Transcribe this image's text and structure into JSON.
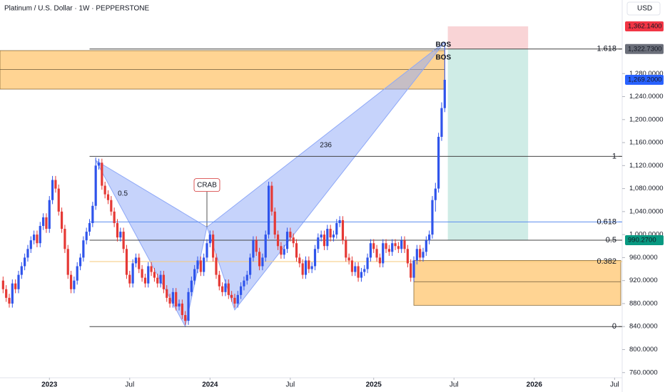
{
  "chart_data": {
    "type": "candlestick",
    "title": "Platinum / U.S. Dollar · 1W · PEPPERSTONE",
    "currency": "USD",
    "up_color": "#2f54eb",
    "down_color": "#e53935",
    "xlim": [
      -1,
      200
    ],
    "ylim": [
      751,
      1408
    ],
    "xticks": [
      {
        "value": 15,
        "label": "2023"
      },
      {
        "value": 41,
        "label": "Jul"
      },
      {
        "value": 67,
        "label": "2024"
      },
      {
        "value": 93,
        "label": "Jul"
      },
      {
        "value": 120,
        "label": "2025"
      },
      {
        "value": 146,
        "label": "Jul"
      },
      {
        "value": 172,
        "label": "2026"
      },
      {
        "value": 198,
        "label": "Jul"
      }
    ],
    "yticks": [
      {
        "value": 760,
        "label": "760.0000"
      },
      {
        "value": 800,
        "label": "800.0000"
      },
      {
        "value": 840,
        "label": "840.0000"
      },
      {
        "value": 880,
        "label": "880.0000"
      },
      {
        "value": 920,
        "label": "920.0000"
      },
      {
        "value": 960,
        "label": "960.0000"
      },
      {
        "value": 1000,
        "label": "1,000.0000"
      },
      {
        "value": 1040,
        "label": "1,040.0000"
      },
      {
        "value": 1080,
        "label": "1,080.0000"
      },
      {
        "value": 1120,
        "label": "1,120.0000"
      },
      {
        "value": 1160,
        "label": "1,160.0000"
      },
      {
        "value": 1200,
        "label": "1,200.0000"
      },
      {
        "value": 1240,
        "label": "1,240.0000"
      },
      {
        "value": 1280,
        "label": "1,280.0000"
      }
    ],
    "ohlc": [
      [
        920,
        927,
        898,
        905
      ],
      [
        905,
        912,
        883,
        890
      ],
      [
        890,
        897,
        873,
        880
      ],
      [
        880,
        922,
        873,
        915
      ],
      [
        915,
        922,
        898,
        905
      ],
      [
        905,
        937,
        898,
        930
      ],
      [
        930,
        952,
        923,
        945
      ],
      [
        945,
        967,
        938,
        960
      ],
      [
        960,
        982,
        953,
        975
      ],
      [
        975,
        997,
        968,
        990
      ],
      [
        990,
        1007,
        983,
        1000
      ],
      [
        1000,
        1007,
        978,
        985
      ],
      [
        985,
        1022,
        978,
        1015
      ],
      [
        1015,
        1037,
        1008,
        1030
      ],
      [
        1030,
        1037,
        1003,
        1010
      ],
      [
        1010,
        1067,
        1003,
        1060
      ],
      [
        1060,
        1102,
        1053,
        1095
      ],
      [
        1095,
        1102,
        1073,
        1080
      ],
      [
        1080,
        1087,
        1033,
        1040
      ],
      [
        1040,
        1047,
        1003,
        1010
      ],
      [
        1010,
        1017,
        968,
        975
      ],
      [
        975,
        982,
        923,
        930
      ],
      [
        930,
        937,
        898,
        905
      ],
      [
        905,
        927,
        898,
        920
      ],
      [
        920,
        952,
        913,
        945
      ],
      [
        945,
        967,
        938,
        960
      ],
      [
        960,
        997,
        953,
        990
      ],
      [
        990,
        1012,
        983,
        1005
      ],
      [
        1005,
        1027,
        998,
        1020
      ],
      [
        1020,
        1057,
        1013,
        1050
      ],
      [
        1050,
        1134,
        1043,
        1120
      ],
      [
        1120,
        1132,
        1113,
        1125
      ],
      [
        1125,
        1132,
        1078,
        1085
      ],
      [
        1085,
        1092,
        1063,
        1070
      ],
      [
        1070,
        1077,
        1053,
        1060
      ],
      [
        1060,
        1067,
        1033,
        1040
      ],
      [
        1040,
        1047,
        1013,
        1020
      ],
      [
        1020,
        1027,
        988,
        995
      ],
      [
        995,
        1012,
        988,
        1005
      ],
      [
        1005,
        1012,
        968,
        975
      ],
      [
        975,
        982,
        923,
        930
      ],
      [
        930,
        937,
        908,
        915
      ],
      [
        915,
        957,
        908,
        950
      ],
      [
        950,
        967,
        943,
        960
      ],
      [
        960,
        967,
        933,
        940
      ],
      [
        940,
        947,
        918,
        925
      ],
      [
        925,
        932,
        908,
        915
      ],
      [
        915,
        952,
        908,
        945
      ],
      [
        945,
        952,
        928,
        935
      ],
      [
        935,
        942,
        918,
        925
      ],
      [
        925,
        932,
        908,
        915
      ],
      [
        915,
        937,
        908,
        930
      ],
      [
        930,
        937,
        898,
        905
      ],
      [
        905,
        912,
        883,
        890
      ],
      [
        890,
        897,
        873,
        880
      ],
      [
        880,
        907,
        873,
        900
      ],
      [
        900,
        907,
        868,
        875
      ],
      [
        875,
        887,
        868,
        880
      ],
      [
        880,
        887,
        853,
        860
      ],
      [
        860,
        867,
        843,
        850
      ],
      [
        850,
        907,
        843,
        900
      ],
      [
        900,
        927,
        893,
        920
      ],
      [
        920,
        947,
        913,
        940
      ],
      [
        940,
        962,
        933,
        955
      ],
      [
        955,
        962,
        928,
        935
      ],
      [
        935,
        967,
        928,
        960
      ],
      [
        960,
        992,
        953,
        985
      ],
      [
        985,
        1007,
        978,
        1000
      ],
      [
        1000,
        1007,
        953,
        960
      ],
      [
        960,
        967,
        923,
        930
      ],
      [
        930,
        937,
        903,
        910
      ],
      [
        910,
        917,
        893,
        900
      ],
      [
        900,
        922,
        893,
        915
      ],
      [
        915,
        922,
        888,
        895
      ],
      [
        895,
        902,
        883,
        890
      ],
      [
        890,
        897,
        873,
        880
      ],
      [
        880,
        902,
        873,
        895
      ],
      [
        895,
        917,
        888,
        910
      ],
      [
        910,
        927,
        903,
        920
      ],
      [
        920,
        937,
        913,
        930
      ],
      [
        930,
        967,
        923,
        960
      ],
      [
        960,
        997,
        953,
        990
      ],
      [
        990,
        997,
        963,
        970
      ],
      [
        970,
        977,
        938,
        945
      ],
      [
        945,
        967,
        938,
        960
      ],
      [
        960,
        1007,
        953,
        1000
      ],
      [
        1000,
        1092,
        993,
        1085
      ],
      [
        1085,
        1092,
        1033,
        1040
      ],
      [
        1040,
        1047,
        993,
        1000
      ],
      [
        1000,
        1007,
        973,
        980
      ],
      [
        980,
        987,
        958,
        965
      ],
      [
        965,
        982,
        958,
        975
      ],
      [
        975,
        1012,
        968,
        1005
      ],
      [
        1005,
        1012,
        988,
        995
      ],
      [
        995,
        1002,
        978,
        985
      ],
      [
        985,
        992,
        953,
        960
      ],
      [
        960,
        967,
        943,
        950
      ],
      [
        950,
        957,
        923,
        930
      ],
      [
        930,
        962,
        923,
        955
      ],
      [
        955,
        962,
        933,
        940
      ],
      [
        940,
        952,
        933,
        945
      ],
      [
        945,
        982,
        938,
        975
      ],
      [
        975,
        1002,
        968,
        995
      ],
      [
        995,
        1007,
        988,
        1000
      ],
      [
        1000,
        1007,
        973,
        980
      ],
      [
        980,
        1017,
        973,
        1010
      ],
      [
        1010,
        1017,
        988,
        995
      ],
      [
        995,
        1007,
        988,
        1000
      ],
      [
        1000,
        1027,
        993,
        1020
      ],
      [
        1020,
        1032,
        1013,
        1025
      ],
      [
        1025,
        1032,
        983,
        990
      ],
      [
        990,
        997,
        953,
        960
      ],
      [
        960,
        967,
        948,
        955
      ],
      [
        955,
        962,
        928,
        935
      ],
      [
        935,
        952,
        928,
        945
      ],
      [
        945,
        952,
        918,
        925
      ],
      [
        925,
        942,
        918,
        935
      ],
      [
        935,
        947,
        928,
        940
      ],
      [
        940,
        967,
        933,
        960
      ],
      [
        960,
        992,
        953,
        985
      ],
      [
        985,
        992,
        968,
        975
      ],
      [
        975,
        982,
        953,
        960
      ],
      [
        960,
        967,
        943,
        950
      ],
      [
        950,
        992,
        943,
        985
      ],
      [
        985,
        992,
        968,
        975
      ],
      [
        975,
        982,
        963,
        970
      ],
      [
        970,
        992,
        963,
        985
      ],
      [
        985,
        992,
        973,
        980
      ],
      [
        980,
        987,
        968,
        975
      ],
      [
        975,
        997,
        968,
        990
      ],
      [
        990,
        997,
        968,
        975
      ],
      [
        975,
        982,
        943,
        950
      ],
      [
        950,
        957,
        918,
        925
      ],
      [
        925,
        962,
        918,
        955
      ],
      [
        955,
        982,
        948,
        975
      ],
      [
        975,
        982,
        953,
        960
      ],
      [
        960,
        977,
        953,
        970
      ],
      [
        970,
        997,
        963,
        990
      ],
      [
        990,
        1007,
        983,
        1000
      ],
      [
        1000,
        1067,
        993,
        1060
      ],
      [
        1060,
        1090,
        1040,
        1080
      ],
      [
        1080,
        1177,
        1073,
        1170
      ],
      [
        1170,
        1230,
        1163,
        1220
      ],
      [
        1220,
        1335,
        1213,
        1269.2
      ]
    ],
    "zones": [
      {
        "from": -1,
        "to": 143,
        "top": 1320,
        "bottom": 1253,
        "mid": 1287
      },
      {
        "from": 133,
        "to": 200,
        "top": 955,
        "bottom": 877,
        "mid": 918
      }
    ],
    "fib": {
      "start": 28,
      "levels": [
        {
          "label": "1.618",
          "value": 1322.73,
          "color": "#444444"
        },
        {
          "label": "1",
          "value": 1136,
          "color": "#444444"
        },
        {
          "label": "0.618",
          "value": 1022,
          "color": "#5b8def"
        },
        {
          "label": "0.5",
          "value": 990.27,
          "color": "#444444"
        },
        {
          "label": "0.382",
          "value": 953,
          "color": "#f5c97a"
        },
        {
          "label": "0",
          "value": 840,
          "color": "#444444"
        }
      ]
    },
    "pattern": {
      "name": "CRAB",
      "x": [
        30,
        59,
        66,
        75,
        143
      ],
      "y": [
        1129,
        840,
        1013,
        869,
        1335
      ],
      "ratio_labels": [
        "0.5",
        "236"
      ]
    },
    "bos_labels": [
      "BOS",
      "BOS"
    ],
    "position": {
      "from": 144,
      "to": 170,
      "stop": 1362.14,
      "entry": 1322.73,
      "target": 990.27
    },
    "price_tags": [
      {
        "value": 1362.14,
        "label": "1,362.1400",
        "color": "#f23645"
      },
      {
        "value": 1322.73,
        "label": "1,322.7300",
        "color": "#6b6f7a"
      },
      {
        "value": 1269.2,
        "label": "1,269.2000",
        "color": "#2962ff"
      },
      {
        "value": 990.27,
        "label": "990.2700",
        "color": "#089981"
      }
    ]
  }
}
